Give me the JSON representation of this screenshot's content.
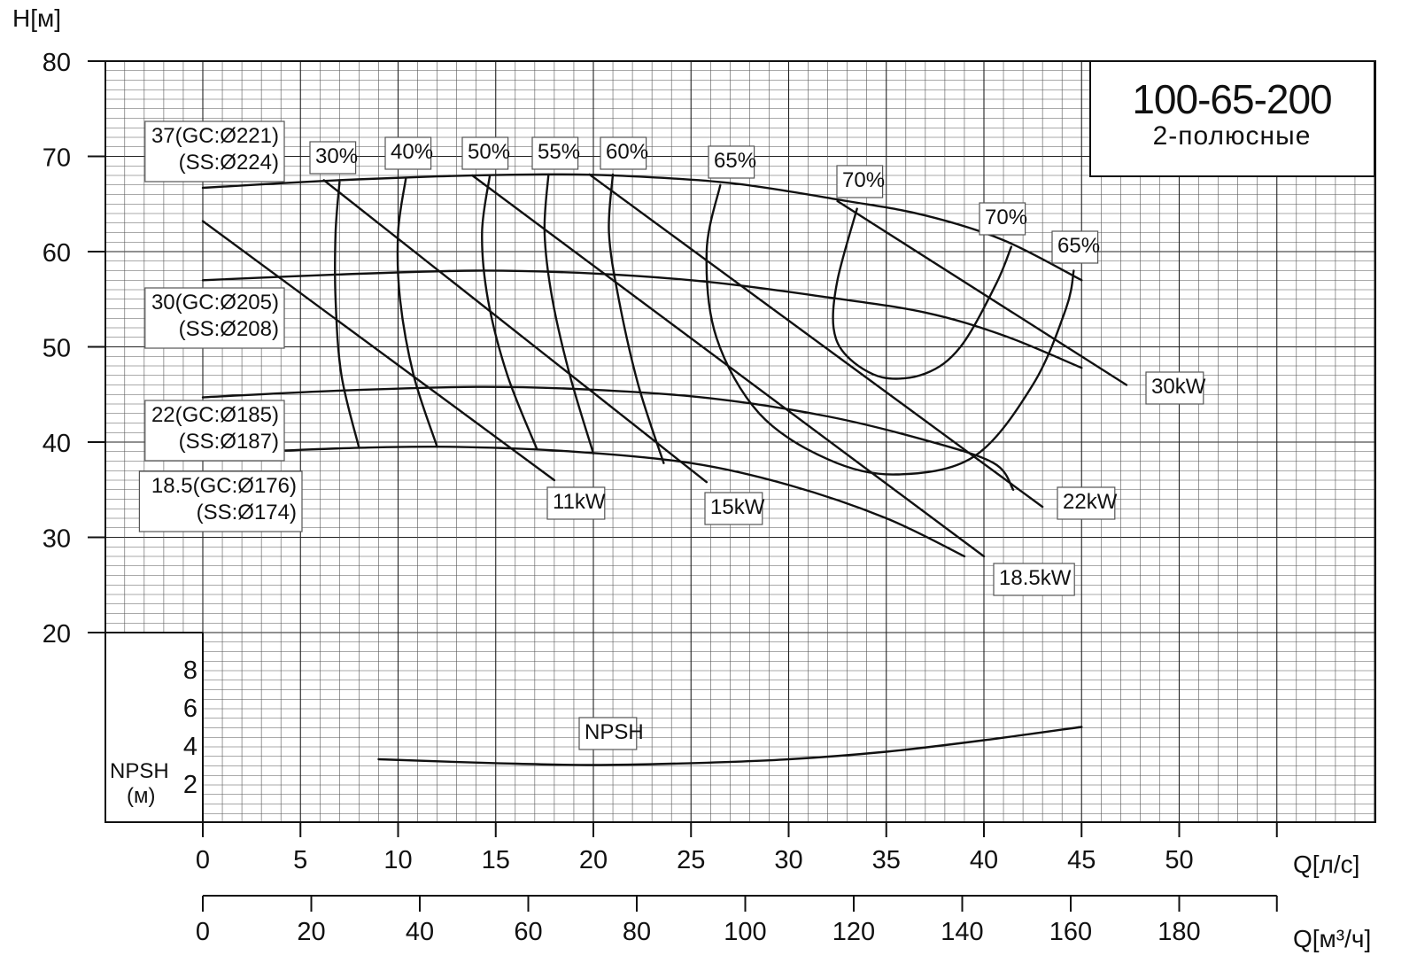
{
  "chart_data": {
    "type": "line",
    "title": "100-65-200",
    "subtitle": "2-полюсные",
    "y_axis": {
      "label": "H[м]",
      "range": [
        20,
        80
      ],
      "ticks": [
        20,
        30,
        40,
        50,
        60,
        70,
        80
      ]
    },
    "npsh_axis": {
      "label": "NPSH",
      "unit": "(м)",
      "range": [
        0,
        10
      ],
      "ticks": [
        2,
        4,
        6,
        8
      ]
    },
    "x_axis_ls": {
      "label": "Q[л/с]",
      "range": [
        0,
        55
      ],
      "ticks": [
        0,
        5,
        10,
        15,
        20,
        25,
        30,
        35,
        40,
        45,
        50
      ]
    },
    "x_axis_m3h": {
      "label": "Q[м³/ч]",
      "ticks": [
        0,
        20,
        40,
        60,
        80,
        100,
        120,
        140,
        160,
        180
      ]
    },
    "grid": true,
    "head_curves": [
      {
        "labels": [
          "37(GC:Ø221)",
          "(SS:Ø224)"
        ],
        "points": [
          [
            0,
            66.7
          ],
          [
            6,
            67.4
          ],
          [
            12,
            67.9
          ],
          [
            17,
            68.1
          ],
          [
            21,
            68
          ],
          [
            27,
            67.2
          ],
          [
            33,
            65.3
          ],
          [
            37,
            63.8
          ],
          [
            41,
            61.2
          ],
          [
            45,
            57
          ]
        ]
      },
      {
        "labels": [
          "30(GC:Ø205)",
          "(SS:Ø208)"
        ],
        "points": [
          [
            0,
            57
          ],
          [
            7,
            57.6
          ],
          [
            14,
            58
          ],
          [
            20,
            57.7
          ],
          [
            26,
            56.8
          ],
          [
            32,
            55.2
          ],
          [
            37,
            53.6
          ],
          [
            41,
            51.2
          ],
          [
            45,
            47.8
          ]
        ]
      },
      {
        "labels": [
          "22(GC:Ø185)",
          "(SS:Ø187)"
        ],
        "points": [
          [
            0,
            44.7
          ],
          [
            7,
            45.4
          ],
          [
            14,
            45.8
          ],
          [
            20,
            45.5
          ],
          [
            26,
            44.6
          ],
          [
            32,
            42.7
          ],
          [
            37,
            40.2
          ],
          [
            40.5,
            37.8
          ],
          [
            41.5,
            35
          ]
        ]
      },
      {
        "labels": [
          "18.5(GC:Ø176)",
          "(SS:Ø174)"
        ],
        "points": [
          [
            3,
            39
          ],
          [
            8,
            39.4
          ],
          [
            13,
            39.5
          ],
          [
            19,
            39
          ],
          [
            25,
            37.8
          ],
          [
            30,
            35.5
          ],
          [
            35,
            32
          ],
          [
            39,
            28
          ]
        ]
      }
    ],
    "power_lines": [
      {
        "label": "11kW",
        "from": [
          0,
          63.2
        ],
        "to": [
          18,
          36
        ]
      },
      {
        "label": "15kW",
        "from": [
          6.2,
          67.5
        ],
        "to": [
          25.8,
          35.8
        ]
      },
      {
        "label": "18.5kW",
        "from": [
          13.8,
          68
        ],
        "to": [
          40,
          28
        ]
      },
      {
        "label": "22kW",
        "from": [
          19.8,
          68.1
        ],
        "to": [
          43,
          33.2
        ]
      },
      {
        "label": "30kW",
        "from": [
          32.5,
          65.3
        ],
        "to": [
          47.3,
          46
        ]
      }
    ],
    "efficiency_labels": [
      "30%",
      "40%",
      "50%",
      "55%",
      "60%",
      "65%",
      "70%",
      "70%",
      "65%"
    ],
    "efficiency_curves": [
      {
        "label": "30%",
        "points": [
          [
            7,
            67.3
          ],
          [
            6.8,
            62
          ],
          [
            6.8,
            55
          ],
          [
            7.1,
            47
          ],
          [
            8,
            39.4
          ]
        ]
      },
      {
        "label": "40%",
        "points": [
          [
            10.4,
            67.7
          ],
          [
            10,
            62
          ],
          [
            10.1,
            55
          ],
          [
            10.8,
            47
          ],
          [
            12,
            39.5
          ]
        ]
      },
      {
        "label": "50%",
        "points": [
          [
            14.7,
            68
          ],
          [
            14.3,
            62
          ],
          [
            14.6,
            55
          ],
          [
            15.6,
            47
          ],
          [
            17.1,
            39.3
          ]
        ]
      },
      {
        "label": "55%",
        "points": [
          [
            17.7,
            68.1
          ],
          [
            17.5,
            62
          ],
          [
            17.9,
            55
          ],
          [
            18.8,
            47
          ],
          [
            20,
            38.8
          ]
        ]
      },
      {
        "label": "60%",
        "points": [
          [
            21,
            68.1
          ],
          [
            20.8,
            62
          ],
          [
            21.3,
            55
          ],
          [
            22.3,
            46
          ],
          [
            23.6,
            37.8
          ]
        ]
      },
      {
        "label": "65% / 65%",
        "points": [
          [
            26.5,
            67
          ],
          [
            25.8,
            60
          ],
          [
            26.3,
            51
          ],
          [
            28.5,
            43
          ],
          [
            32,
            38.2
          ],
          [
            35.5,
            36.6
          ],
          [
            39.5,
            38.5
          ],
          [
            42.5,
            46
          ],
          [
            44.2,
            54
          ],
          [
            44.6,
            58
          ]
        ]
      },
      {
        "label": "70% / 70%",
        "points": [
          [
            33.5,
            64.5
          ],
          [
            32.5,
            57
          ],
          [
            32.3,
            52
          ],
          [
            33,
            49
          ],
          [
            34.8,
            46.8
          ],
          [
            37,
            47.2
          ],
          [
            38.8,
            50
          ],
          [
            40.6,
            56.5
          ],
          [
            41.4,
            60.5
          ]
        ]
      }
    ],
    "npsh_curve": {
      "label": "NPSH",
      "points": [
        [
          9,
          3.3
        ],
        [
          15,
          3.1
        ],
        [
          20,
          3.0
        ],
        [
          25,
          3.1
        ],
        [
          30,
          3.3
        ],
        [
          35,
          3.7
        ],
        [
          40,
          4.3
        ],
        [
          45,
          5.0
        ]
      ]
    }
  }
}
